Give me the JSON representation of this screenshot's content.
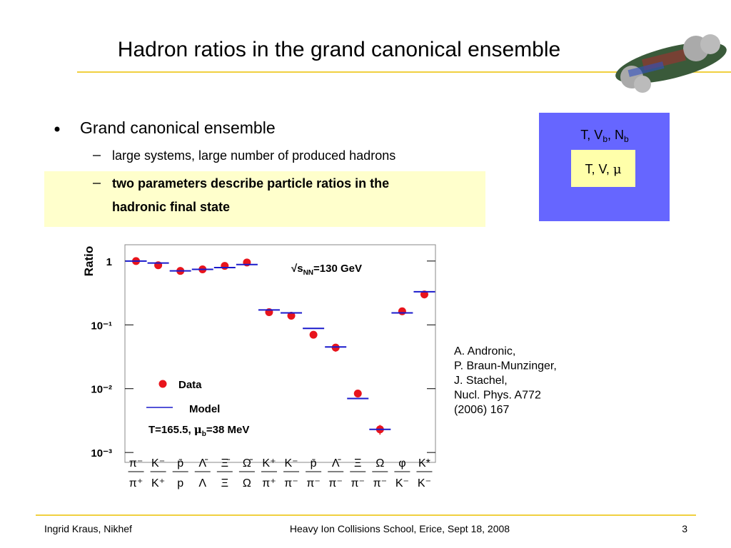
{
  "title": "Hadron ratios in the grand canonical ensemble",
  "bullets": {
    "main": "Grand canonical ensemble",
    "sub": [
      [
        "large systems, large number of produced hadrons"
      ],
      [
        "two parameters describe particle ratios in the",
        "hadronic final state"
      ]
    ]
  },
  "box": {
    "outer": [
      "T, V",
      "b",
      ", N",
      "b"
    ],
    "inner": [
      "T, V, ",
      "μ"
    ]
  },
  "reference": [
    "A. Andronic,",
    "P. Braun-Munzinger,",
    "J. Stachel,",
    "Nucl. Phys. A772",
    "(2006)  167"
  ],
  "footer": {
    "left": "Ingrid Kraus, Nikhef",
    "center": "Heavy Ion Collisions School, Erice, Sept 18, 2008",
    "page": 3
  },
  "chart_data": {
    "type": "scatter",
    "ylabel": "Ratio",
    "log_y": true,
    "annotation": [
      "√s",
      "NN",
      "=130 GeV"
    ],
    "params": [
      "T=165.5, ",
      "μ",
      "b",
      "=38 MeV"
    ],
    "categories": [
      [
        "π⁻",
        "π⁺"
      ],
      [
        "K⁻",
        "K⁺"
      ],
      [
        "p̄",
        "p"
      ],
      [
        "Λ̄",
        "Λ"
      ],
      [
        "Ξ̄",
        "Ξ"
      ],
      [
        "Ω̄",
        "Ω"
      ],
      [
        "K⁺",
        "π⁺"
      ],
      [
        "K⁻",
        "π⁻"
      ],
      [
        "p̄",
        "π⁻"
      ],
      [
        "Λ̄",
        "π⁻"
      ],
      [
        "Ξ",
        "π⁻"
      ],
      [
        "Ω",
        "π⁻"
      ],
      [
        "φ",
        "K⁻"
      ],
      [
        "K*",
        "K⁻"
      ]
    ],
    "series": [
      {
        "name": "Data",
        "color": "#e8141c",
        "marker": "circle",
        "values": [
          1.0,
          0.86,
          0.7,
          0.74,
          0.84,
          0.95,
          0.158,
          0.139,
          0.07,
          0.044,
          0.0084,
          0.0023,
          0.163,
          0.3
        ],
        "errors": [
          0.07,
          0.09,
          0.07,
          0.07,
          0.08,
          0.1,
          0.016,
          0.014,
          0.009,
          0.006,
          0.0008,
          0.0004,
          0.02,
          0.04
        ]
      },
      {
        "name": "Model",
        "color": "#1a1acc",
        "marker": "dash",
        "values": [
          1.0,
          0.93,
          0.7,
          0.74,
          0.79,
          0.88,
          0.171,
          0.154,
          0.088,
          0.045,
          0.007,
          0.0023,
          0.154,
          0.33
        ]
      }
    ],
    "ylim": [
      0.0007,
      1.8
    ],
    "yticks": [
      {
        "value": 0.001,
        "label": "10⁻³"
      },
      {
        "value": 0.01,
        "label": "10⁻²"
      },
      {
        "value": 0.1,
        "label": "10⁻¹"
      },
      1
    ]
  }
}
